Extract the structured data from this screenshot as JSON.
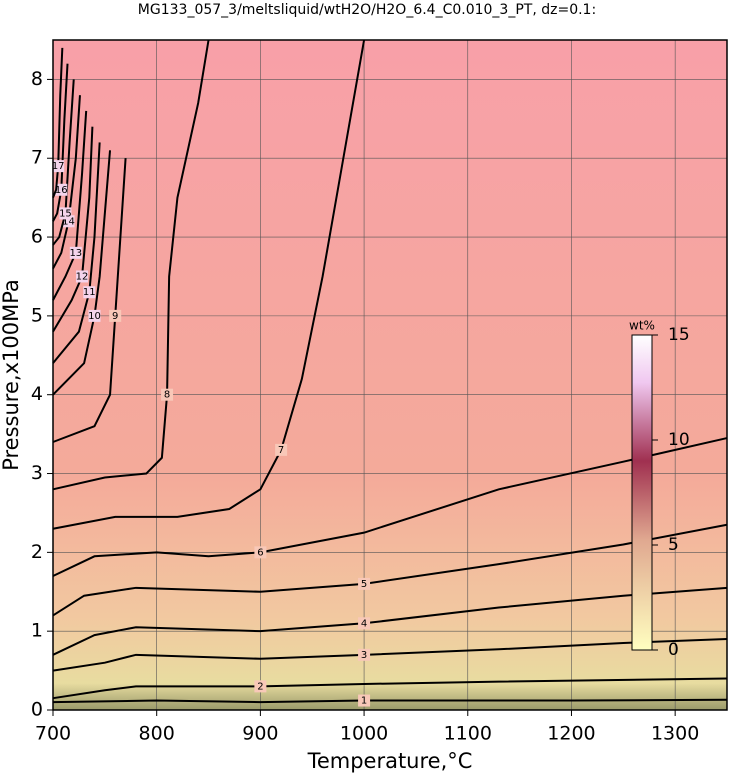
{
  "chart_data": {
    "type": "contour",
    "title": "MG133_057_3/meltsliquid/wtH2O/H2O_6.4_C0.010_3_PT, dz=0.1:",
    "xlabel": "Temperature,°C",
    "ylabel": "Pressure,x100MPa",
    "xlim": [
      700,
      1350
    ],
    "ylim": [
      0,
      8.5
    ],
    "xticks": [
      700,
      800,
      900,
      1000,
      1100,
      1200,
      1300
    ],
    "yticks": [
      0,
      1,
      2,
      3,
      4,
      5,
      6,
      7,
      8
    ],
    "grid": true,
    "line_color": "#000000",
    "colorbar": {
      "label": "wt%",
      "lim": [
        0,
        15
      ],
      "ticks": [
        0,
        5,
        10,
        15
      ]
    },
    "contours": [
      {
        "level": 1,
        "x": [
          700,
          800,
          900,
          1000,
          1130,
          1200,
          1350
        ],
        "y": [
          0.1,
          0.12,
          0.1,
          0.12,
          0.12,
          0.12,
          0.13
        ]
      },
      {
        "level": 2,
        "x": [
          700,
          750,
          780,
          900,
          1000,
          1130,
          1350
        ],
        "y": [
          0.15,
          0.25,
          0.3,
          0.3,
          0.33,
          0.36,
          0.4
        ]
      },
      {
        "level": 3,
        "x": [
          700,
          750,
          780,
          900,
          1000,
          1130,
          1250,
          1350
        ],
        "y": [
          0.5,
          0.6,
          0.7,
          0.65,
          0.7,
          0.77,
          0.85,
          0.9
        ]
      },
      {
        "level": 4,
        "x": [
          700,
          740,
          780,
          900,
          1000,
          1130,
          1250,
          1350
        ],
        "y": [
          0.7,
          0.95,
          1.05,
          1.0,
          1.1,
          1.3,
          1.45,
          1.55
        ]
      },
      {
        "level": 5,
        "x": [
          700,
          730,
          780,
          900,
          1000,
          1130,
          1250,
          1350
        ],
        "y": [
          1.2,
          1.45,
          1.55,
          1.5,
          1.6,
          1.85,
          2.1,
          2.35
        ]
      },
      {
        "level": 6,
        "x": [
          700,
          740,
          800,
          850,
          900,
          1000,
          1130,
          1250,
          1350
        ],
        "y": [
          1.7,
          1.95,
          2.0,
          1.95,
          2.0,
          2.25,
          2.8,
          3.15,
          3.45
        ]
      },
      {
        "level": 7,
        "x": [
          700,
          760,
          820,
          870,
          900,
          920,
          940,
          960,
          980,
          1000
        ],
        "y": [
          2.3,
          2.45,
          2.45,
          2.55,
          2.8,
          3.3,
          4.2,
          5.5,
          7.0,
          8.5
        ]
      },
      {
        "level": 8,
        "x": [
          700,
          750,
          790,
          805,
          810,
          812,
          820,
          840,
          850
        ],
        "y": [
          2.8,
          2.95,
          3.0,
          3.2,
          4.0,
          5.5,
          6.5,
          7.7,
          8.5
        ]
      },
      {
        "level": 9,
        "x": [
          700,
          740,
          755,
          760,
          765,
          770
        ],
        "y": [
          3.4,
          3.6,
          4.0,
          5.0,
          6.0,
          7.0
        ]
      },
      {
        "level": 10,
        "x": [
          700,
          730,
          740,
          745,
          755
        ],
        "y": [
          4.0,
          4.4,
          5.0,
          5.5,
          7.1
        ]
      },
      {
        "level": 11,
        "x": [
          700,
          725,
          735,
          740,
          745
        ],
        "y": [
          4.4,
          4.8,
          5.3,
          6.0,
          7.2
        ]
      },
      {
        "level": 12,
        "x": [
          700,
          718,
          728,
          735,
          738
        ],
        "y": [
          4.8,
          5.2,
          5.5,
          6.5,
          7.4
        ]
      },
      {
        "level": 13,
        "x": [
          700,
          712,
          722,
          728,
          732
        ],
        "y": [
          5.2,
          5.5,
          5.8,
          6.8,
          7.6
        ]
      },
      {
        "level": 14,
        "x": [
          700,
          708,
          715,
          722,
          726
        ],
        "y": [
          5.6,
          5.8,
          6.2,
          7.0,
          7.8
        ]
      },
      {
        "level": 15,
        "x": [
          700,
          706,
          712,
          716,
          720
        ],
        "y": [
          5.9,
          6.0,
          6.3,
          7.2,
          8.0
        ]
      },
      {
        "level": 16,
        "x": [
          700,
          704,
          708,
          711,
          714
        ],
        "y": [
          6.2,
          6.3,
          6.6,
          7.5,
          8.2
        ]
      },
      {
        "level": 17,
        "x": [
          700,
          703,
          705,
          707,
          709
        ],
        "y": [
          6.5,
          6.6,
          6.9,
          7.8,
          8.4
        ]
      }
    ]
  }
}
